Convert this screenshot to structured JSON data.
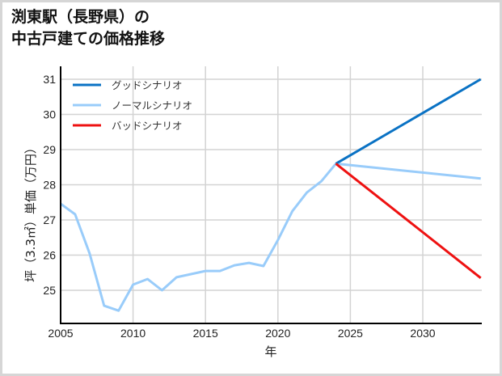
{
  "title_lines": [
    "渕東駅（長野県）の",
    "中古戸建ての価格推移"
  ],
  "chart_data": {
    "type": "line",
    "title": "渕東駅（長野県）の中古戸建ての価格推移",
    "xlabel": "年",
    "ylabel": "坪（3.3㎡）単価（万円）",
    "xlim": [
      2005,
      2034
    ],
    "ylim": [
      24.1,
      31.4
    ],
    "xticks": [
      2005,
      2010,
      2015,
      2020,
      2025,
      2030
    ],
    "yticks": [
      25,
      26,
      27,
      28,
      29,
      30,
      31
    ],
    "grid": true,
    "legend_position": "upper left",
    "series": [
      {
        "name": "グッドシナリオ",
        "color": "#0a72c4",
        "x": [
          2024,
          2034
        ],
        "values": [
          28.6,
          31.0
        ]
      },
      {
        "name": "ノーマルシナリオ",
        "color": "#99ccfa",
        "x": [
          2005,
          2006,
          2007,
          2008,
          2009,
          2010,
          2011,
          2012,
          2013,
          2014,
          2015,
          2016,
          2017,
          2018,
          2019,
          2020,
          2021,
          2022,
          2023,
          2024,
          2034
        ],
        "values": [
          27.46,
          27.16,
          26.05,
          24.56,
          24.42,
          25.16,
          25.32,
          25.0,
          25.37,
          25.46,
          25.55,
          25.55,
          25.71,
          25.78,
          25.69,
          26.43,
          27.25,
          27.78,
          28.1,
          28.6,
          28.18
        ]
      },
      {
        "name": "バッドシナリオ",
        "color": "#ee1111",
        "x": [
          2024,
          2034
        ],
        "values": [
          28.6,
          25.35
        ]
      }
    ]
  }
}
